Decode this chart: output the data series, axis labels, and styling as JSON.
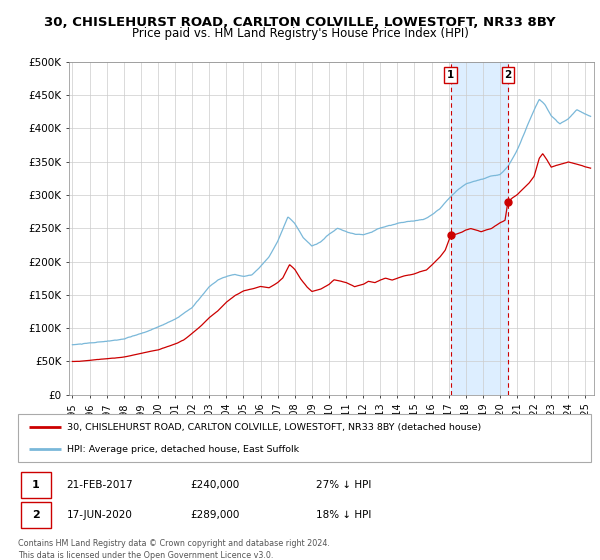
{
  "title": "30, CHISLEHURST ROAD, CARLTON COLVILLE, LOWESTOFT, NR33 8BY",
  "subtitle": "Price paid vs. HM Land Registry's House Price Index (HPI)",
  "ylim": [
    0,
    500000
  ],
  "yticks": [
    0,
    50000,
    100000,
    150000,
    200000,
    250000,
    300000,
    350000,
    400000,
    450000,
    500000
  ],
  "ytick_labels": [
    "£0",
    "£50K",
    "£100K",
    "£150K",
    "£200K",
    "£250K",
    "£300K",
    "£350K",
    "£400K",
    "£450K",
    "£500K"
  ],
  "xlim_start": 1994.8,
  "xlim_end": 2025.5,
  "xticks": [
    1995,
    1996,
    1997,
    1998,
    1999,
    2000,
    2001,
    2002,
    2003,
    2004,
    2005,
    2006,
    2007,
    2008,
    2009,
    2010,
    2011,
    2012,
    2013,
    2014,
    2015,
    2016,
    2017,
    2018,
    2019,
    2020,
    2021,
    2022,
    2023,
    2024,
    2025
  ],
  "hpi_color": "#7ab8d9",
  "price_color": "#cc0000",
  "dot_color": "#cc0000",
  "vline_color": "#cc0000",
  "shade_color": "#ddeeff",
  "marker1_date": 2017.12,
  "marker2_date": 2020.46,
  "marker1_price": 240000,
  "marker2_price": 289000,
  "legend_label1": "30, CHISLEHURST ROAD, CARLTON COLVILLE, LOWESTOFT, NR33 8BY (detached house)",
  "legend_label2": "HPI: Average price, detached house, East Suffolk",
  "table_row1": [
    "1",
    "21-FEB-2017",
    "£240,000",
    "27% ↓ HPI"
  ],
  "table_row2": [
    "2",
    "17-JUN-2020",
    "£289,000",
    "18% ↓ HPI"
  ],
  "footer": "Contains HM Land Registry data © Crown copyright and database right 2024.\nThis data is licensed under the Open Government Licence v3.0.",
  "grid_color": "#cccccc",
  "title_fontsize": 9.5,
  "subtitle_fontsize": 8.5
}
